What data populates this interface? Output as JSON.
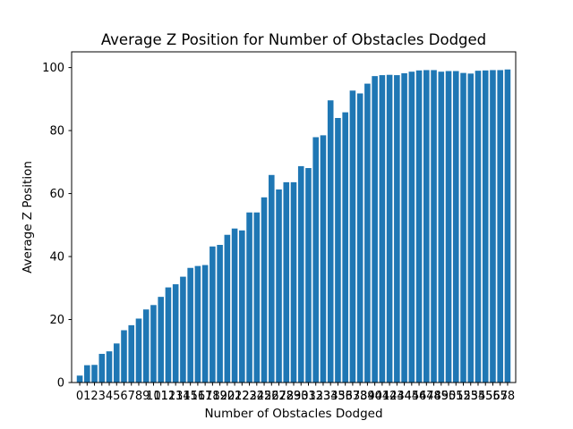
{
  "chart_data": {
    "type": "bar",
    "title": "Average Z Position for Number of Obstacles Dodged",
    "xlabel": "Number of Obstacles Dodged",
    "ylabel": "Average Z Position",
    "categories": [
      0,
      1,
      2,
      3,
      4,
      5,
      6,
      7,
      8,
      9,
      10,
      11,
      12,
      13,
      14,
      15,
      16,
      17,
      18,
      19,
      20,
      21,
      22,
      23,
      24,
      25,
      26,
      27,
      28,
      29,
      30,
      31,
      32,
      33,
      34,
      35,
      36,
      37,
      38,
      39,
      40,
      41,
      42,
      43,
      44,
      45,
      46,
      47,
      48,
      49,
      50,
      51,
      52,
      53,
      54,
      55,
      56,
      57,
      58
    ],
    "values": [
      2.2,
      5.5,
      5.6,
      9.1,
      9.9,
      12.4,
      16.6,
      18.2,
      20.3,
      23.2,
      24.6,
      27.2,
      30.2,
      31.2,
      33.6,
      36.4,
      37.0,
      37.3,
      43.2,
      43.7,
      46.9,
      48.9,
      48.3,
      54.0,
      54.0,
      58.8,
      65.9,
      61.3,
      63.6,
      63.6,
      68.7,
      68.1,
      77.9,
      78.5,
      89.6,
      84.0,
      85.8,
      92.7,
      91.8,
      94.9,
      97.3,
      97.6,
      97.7,
      97.6,
      98.2,
      98.7,
      99.1,
      99.2,
      99.2,
      98.7,
      98.9,
      98.9,
      98.3,
      98.1,
      99.0,
      99.1,
      99.2,
      99.2,
      99.4
    ],
    "ylim": [
      0,
      105
    ],
    "yticks": [
      0,
      20,
      40,
      60,
      80,
      100
    ],
    "colors": {
      "bar": "#1f77b4",
      "axis": "#000000",
      "background": "#ffffff"
    },
    "grid": false,
    "legend": "none"
  }
}
